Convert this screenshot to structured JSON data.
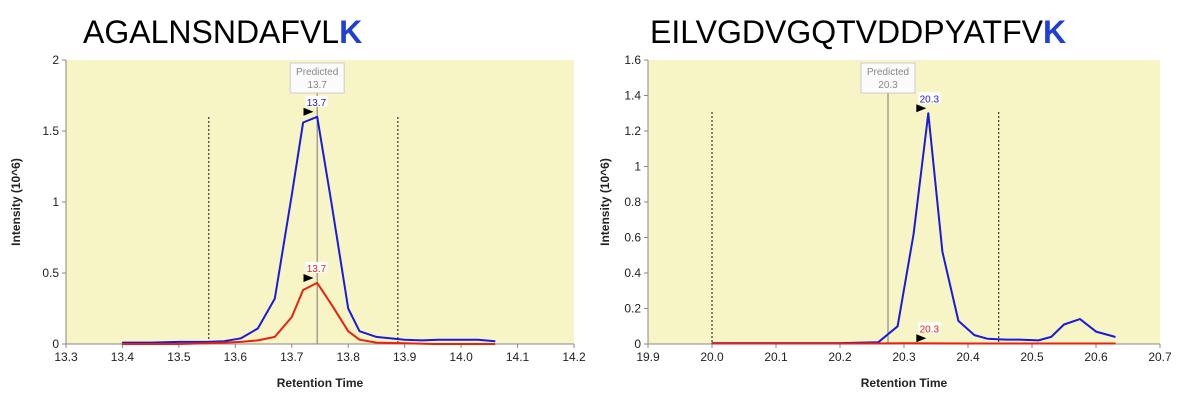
{
  "chart_data": [
    {
      "type": "line",
      "title_main": "AGALNSNDAFVL",
      "title_last": "K",
      "xlabel": "Retention Time",
      "ylabel": "Intensity (10^6)",
      "xlim": [
        13.3,
        14.2
      ],
      "ylim": [
        0,
        2
      ],
      "xticks": [
        "13.3",
        "13.4",
        "13.5",
        "13.6",
        "13.7",
        "13.8",
        "13.9",
        "14.0",
        "14.1",
        "14.2"
      ],
      "yticks": [
        "0",
        "0.5",
        "1",
        "1.5",
        "2"
      ],
      "predicted_label": "Predicted",
      "predicted_value": "13.7",
      "predicted_x": 13.745,
      "boundaries": [
        13.553,
        13.888
      ],
      "series": [
        {
          "color": "#1a1adb",
          "peak_label": "13.7",
          "peak_x": 13.742,
          "peak_y": 1.6,
          "x": [
            13.4,
            13.45,
            13.5,
            13.55,
            13.58,
            13.61,
            13.64,
            13.67,
            13.7,
            13.72,
            13.745,
            13.77,
            13.8,
            13.82,
            13.85,
            13.9,
            13.93,
            13.96,
            14.0,
            14.03,
            14.06
          ],
          "y": [
            0.01,
            0.01,
            0.015,
            0.015,
            0.02,
            0.04,
            0.11,
            0.32,
            1.05,
            1.56,
            1.6,
            1.0,
            0.25,
            0.09,
            0.05,
            0.03,
            0.025,
            0.03,
            0.03,
            0.03,
            0.02
          ]
        },
        {
          "color": "#e8220c",
          "peak_label": "13.7",
          "peak_x": 13.742,
          "peak_y": 0.43,
          "x": [
            13.4,
            13.45,
            13.5,
            13.55,
            13.58,
            13.61,
            13.64,
            13.67,
            13.7,
            13.72,
            13.745,
            13.77,
            13.8,
            13.82,
            13.85,
            13.9,
            13.95,
            14.0,
            14.06
          ],
          "y": [
            0.0,
            0.0,
            0.0,
            0.005,
            0.01,
            0.015,
            0.025,
            0.05,
            0.19,
            0.38,
            0.43,
            0.28,
            0.09,
            0.03,
            0.01,
            0.005,
            0.0,
            0.0,
            0.0
          ]
        }
      ]
    },
    {
      "type": "line",
      "title_main": "EILVGDVGQTVDDPYATFV",
      "title_last": "K",
      "xlabel": "Retention Time",
      "ylabel": "Intensity (10^6)",
      "xlim": [
        19.9,
        20.7
      ],
      "ylim": [
        0,
        1.6
      ],
      "xticks": [
        "19.9",
        "20.0",
        "20.1",
        "20.2",
        "20.3",
        "20.4",
        "20.5",
        "20.6",
        "20.7"
      ],
      "yticks": [
        "0",
        "0.2",
        "0.4",
        "0.6",
        "0.8",
        "1",
        "1.2",
        "1.4",
        "1.6"
      ],
      "predicted_label": "Predicted",
      "predicted_value": "20.3",
      "predicted_x": 20.275,
      "boundaries": [
        20.0,
        20.448
      ],
      "series": [
        {
          "color": "#1a1adb",
          "peak_label": "20.3",
          "peak_x": 20.338,
          "peak_y": 1.3,
          "x": [
            20.0,
            20.1,
            20.2,
            20.26,
            20.29,
            20.315,
            20.338,
            20.36,
            20.385,
            20.41,
            20.43,
            20.46,
            20.48,
            20.51,
            20.53,
            20.55,
            20.575,
            20.6,
            20.63
          ],
          "y": [
            0.005,
            0.005,
            0.005,
            0.01,
            0.1,
            0.62,
            1.3,
            0.52,
            0.13,
            0.05,
            0.03,
            0.025,
            0.025,
            0.02,
            0.04,
            0.11,
            0.14,
            0.07,
            0.04
          ]
        },
        {
          "color": "#e8220c",
          "peak_label": "20.3",
          "peak_x": 20.338,
          "peak_y": 0.004,
          "x": [
            20.0,
            20.1,
            20.2,
            20.3,
            20.4,
            20.5,
            20.63
          ],
          "y": [
            0.003,
            0.003,
            0.003,
            0.004,
            0.003,
            0.003,
            0.003
          ]
        }
      ]
    }
  ]
}
